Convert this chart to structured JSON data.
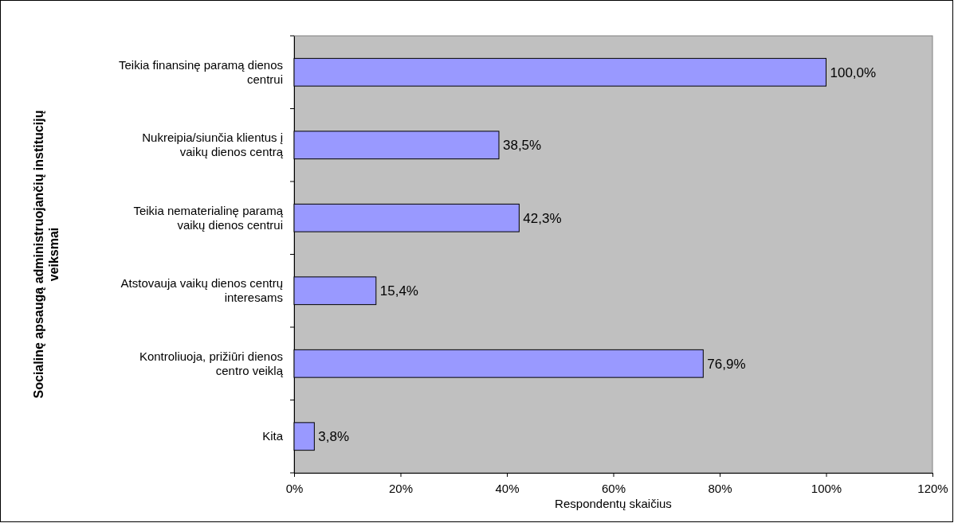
{
  "chart_data": {
    "type": "bar",
    "orientation": "horizontal",
    "xlabel": "Respondentų skaičius",
    "ylabel": "Socialinę apsaugą administruojančių institucijų veiksmai",
    "categories": [
      "Teikia finansinę paramą dienos centrui",
      "Nukreipia/siunčia klientus į vaikų dienos centrą",
      "Teikia nematerialinę paramą vaikų dienos centrui",
      "Atstovauja vaikų dienos centrų interesams",
      "Kontroliuoja, prižiūri dienos centro veiklą",
      "Kita"
    ],
    "values": [
      100.0,
      38.5,
      42.3,
      15.4,
      76.9,
      3.8
    ],
    "value_labels": [
      "100,0%",
      "38,5%",
      "42,3%",
      "15,4%",
      "76,9%",
      "3,8%"
    ],
    "color": "#9999ff",
    "xlim": [
      0,
      120
    ],
    "xticks": [
      {
        "value": 0,
        "label": "0%"
      },
      {
        "value": 20,
        "label": "20%"
      },
      {
        "value": 40,
        "label": "40%"
      },
      {
        "value": 60,
        "label": "60%"
      },
      {
        "value": 80,
        "label": "80%"
      },
      {
        "value": 100,
        "label": "100%"
      },
      {
        "value": 120,
        "label": "120%"
      }
    ],
    "grid": false
  }
}
